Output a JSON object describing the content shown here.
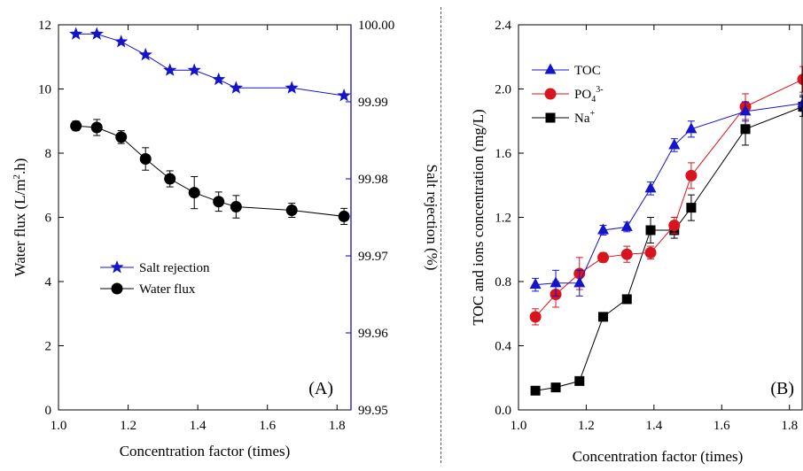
{
  "chart_data": [
    {
      "type": "line",
      "panel": "(A)",
      "xlabel": "Concentration factor (times)",
      "ylabel": "Water flux (L/m2.h)",
      "ylabel_parts": {
        "pre": "Water flux (L/m",
        "sup": "2",
        "post": ".h)"
      },
      "ylabel_right": "Salt rejection (%)",
      "xlim": [
        1.0,
        1.84
      ],
      "ylim": [
        0,
        12
      ],
      "ylim_right": [
        99.95,
        100.0
      ],
      "x_ticks": [
        "1.0",
        "1.2",
        "1.4",
        "1.6",
        "1.8"
      ],
      "y_ticks": [
        "0",
        "2",
        "4",
        "6",
        "8",
        "10",
        "12"
      ],
      "y_ticks_right": [
        "99.95",
        "99.96",
        "99.97",
        "99.98",
        "99.99",
        "100.00"
      ],
      "right_axis_color": "#0000b3",
      "legend_position": "center-left",
      "series": [
        {
          "name": "Salt rejection",
          "axis": "right",
          "marker": "star",
          "color": "#1414c8",
          "x": [
            1.05,
            1.11,
            1.18,
            1.25,
            1.32,
            1.39,
            1.46,
            1.51,
            1.67,
            1.82
          ],
          "values": [
            99.9988,
            99.9988,
            99.9978,
            99.9961,
            99.9941,
            99.9941,
            99.9929,
            99.9918,
            99.9918,
            99.9908
          ]
        },
        {
          "name": "Water flux",
          "axis": "left",
          "marker": "circle",
          "color": "#000000",
          "x": [
            1.05,
            1.11,
            1.18,
            1.25,
            1.32,
            1.39,
            1.46,
            1.51,
            1.67,
            1.82
          ],
          "values": [
            8.85,
            8.8,
            8.5,
            7.82,
            7.2,
            6.77,
            6.49,
            6.33,
            6.22,
            6.03
          ],
          "errors": [
            0.15,
            0.25,
            0.2,
            0.35,
            0.25,
            0.5,
            0.3,
            0.35,
            0.22,
            0.25
          ]
        }
      ]
    },
    {
      "type": "line",
      "panel": "(B)",
      "xlabel": "Concentration factor (times)",
      "ylabel": "TOC and ions concentration (mg/L)",
      "xlim": [
        1.0,
        1.84
      ],
      "ylim": [
        0,
        2.4
      ],
      "x_ticks": [
        "1.0",
        "1.2",
        "1.4",
        "1.6",
        "1.8"
      ],
      "y_ticks": [
        "0.0",
        "0.4",
        "0.8",
        "1.2",
        "1.6",
        "2.0",
        "2.4"
      ],
      "legend_position": "top-left",
      "series": [
        {
          "name": "TOC",
          "legend_parts": {
            "base": "TOC",
            "sub": "",
            "sup": ""
          },
          "marker": "triangle",
          "color": "#1414c8",
          "x": [
            1.05,
            1.11,
            1.18,
            1.25,
            1.32,
            1.39,
            1.46,
            1.51,
            1.67,
            1.84
          ],
          "values": [
            0.78,
            0.79,
            0.79,
            1.12,
            1.14,
            1.38,
            1.65,
            1.75,
            1.86,
            1.91
          ],
          "errors": [
            0.04,
            0.08,
            0.08,
            0.03,
            0.03,
            0.04,
            0.04,
            0.05,
            0.06,
            0.05
          ]
        },
        {
          "name": "PO43-",
          "legend_parts": {
            "base": "PO",
            "sub": "4",
            "sup": "3-"
          },
          "marker": "circle",
          "color": "#d8141e",
          "x": [
            1.05,
            1.11,
            1.18,
            1.25,
            1.32,
            1.39,
            1.46,
            1.51,
            1.67,
            1.84
          ],
          "values": [
            0.58,
            0.72,
            0.85,
            0.95,
            0.97,
            0.98,
            1.15,
            1.46,
            1.89,
            2.06
          ],
          "errors": [
            0.05,
            0.08,
            0.1,
            0.03,
            0.05,
            0.04,
            0.05,
            0.08,
            0.08,
            0.08
          ]
        },
        {
          "name": "Na+",
          "legend_parts": {
            "base": "Na",
            "sub": "",
            "sup": "+"
          },
          "marker": "square",
          "color": "#000000",
          "x": [
            1.05,
            1.11,
            1.18,
            1.25,
            1.32,
            1.39,
            1.46,
            1.51,
            1.67,
            1.84
          ],
          "values": [
            0.12,
            0.14,
            0.18,
            0.58,
            0.69,
            1.12,
            1.12,
            1.26,
            1.75,
            1.89
          ],
          "errors": [
            0.02,
            0.02,
            0.02,
            0.02,
            0.02,
            0.08,
            0.05,
            0.08,
            0.1,
            0.06
          ]
        }
      ]
    }
  ]
}
